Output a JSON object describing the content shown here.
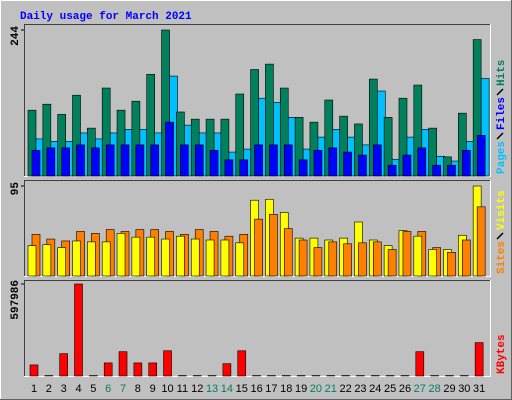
{
  "chart_data": [
    {
      "type": "bar",
      "title": "Daily usage for March 2021",
      "ylim": [
        0,
        244
      ],
      "yticks": [
        244
      ],
      "series": [
        {
          "name": "Pages",
          "color": "#00c0ff",
          "values": [
            62,
            58,
            58,
            72,
            62,
            72,
            78,
            78,
            72,
            167,
            85,
            72,
            72,
            40,
            45,
            130,
            123,
            98,
            45,
            65,
            78,
            65,
            52,
            142,
            28,
            65,
            78,
            33,
            25,
            58,
            163
          ]
        },
        {
          "name": "Files",
          "color": "#0000ff",
          "values": [
            43,
            47,
            47,
            52,
            47,
            52,
            52,
            52,
            52,
            90,
            52,
            52,
            43,
            27,
            27,
            52,
            52,
            52,
            27,
            43,
            47,
            40,
            35,
            52,
            18,
            35,
            47,
            18,
            18,
            43,
            68
          ]
        },
        {
          "name": "Hits",
          "color": "#00805c",
          "values": [
            110,
            120,
            103,
            135,
            80,
            147,
            110,
            125,
            170,
            244,
            107,
            95,
            95,
            95,
            137,
            178,
            187,
            147,
            98,
            90,
            127,
            100,
            87,
            162,
            98,
            130,
            152,
            80,
            32,
            105,
            228
          ]
        }
      ]
    },
    {
      "type": "bar",
      "ylim": [
        0,
        95
      ],
      "yticks": [
        95
      ],
      "series": [
        {
          "name": "Sites",
          "color": "#ff8000",
          "values": [
            44,
            39,
            37,
            47,
            45,
            49,
            47,
            49,
            49,
            47,
            44,
            49,
            47,
            42,
            44,
            60,
            65,
            50,
            38,
            30,
            36,
            34,
            35,
            36,
            28,
            47,
            47,
            30,
            25,
            38,
            73
          ]
        },
        {
          "name": "Visits",
          "color": "#ffff00",
          "values": [
            32,
            33,
            30,
            37,
            36,
            36,
            45,
            41,
            41,
            39,
            42,
            39,
            38,
            38,
            35,
            80,
            81,
            67,
            40,
            40,
            38,
            40,
            57,
            38,
            32,
            48,
            42,
            28,
            28,
            43,
            95
          ]
        }
      ]
    },
    {
      "type": "bar",
      "ylim": [
        0,
        597986
      ],
      "yticks": [
        597986
      ],
      "series": [
        {
          "name": "KBytes",
          "color": "#ff0000",
          "values": [
            72000,
            3000,
            145000,
            597986,
            3000,
            85000,
            158000,
            85000,
            85000,
            164000,
            3000,
            3000,
            3000,
            80000,
            164000,
            3000,
            3000,
            3000,
            3000,
            3000,
            3000,
            3000,
            3000,
            3000,
            3000,
            3000,
            158000,
            3000,
            3000,
            3000,
            217000
          ]
        }
      ],
      "categories": [
        1,
        2,
        3,
        4,
        5,
        6,
        7,
        8,
        9,
        10,
        11,
        12,
        13,
        14,
        15,
        16,
        17,
        18,
        19,
        20,
        21,
        22,
        23,
        24,
        25,
        26,
        27,
        28,
        29,
        30,
        31
      ],
      "highlight_categories": [
        6,
        7,
        13,
        14,
        20,
        21,
        27,
        28
      ],
      "highlight_color": "#00805c"
    }
  ]
}
